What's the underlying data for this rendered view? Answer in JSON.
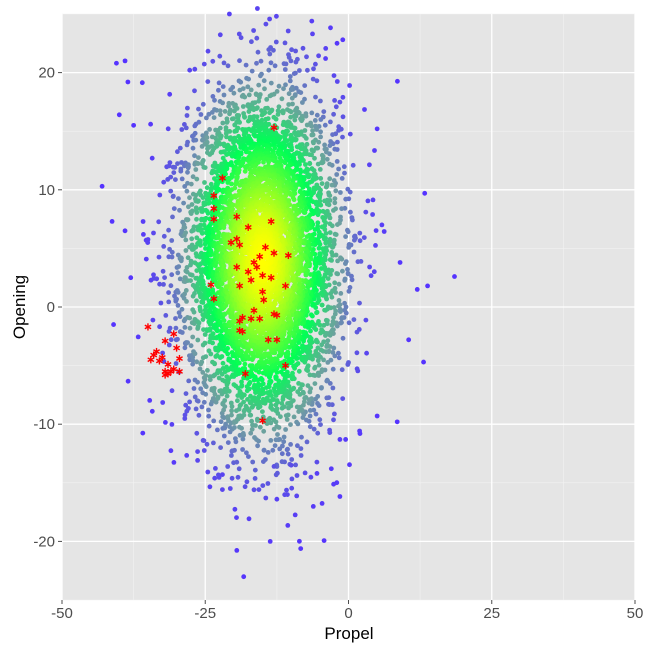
{
  "chart_data": {
    "type": "scatter",
    "title": "",
    "xlabel": "Propel",
    "ylabel": "Opening",
    "xlim": [
      -50,
      50
    ],
    "ylim": [
      -25,
      25
    ],
    "x_ticks": [
      -50,
      -25,
      0,
      25,
      50
    ],
    "x_tick_labels": [
      "-50",
      "-25",
      "0",
      "25",
      "50"
    ],
    "y_ticks": [
      -20,
      -10,
      0,
      10,
      20
    ],
    "y_tick_labels": [
      "-20",
      "-10",
      "0",
      "10",
      "20"
    ],
    "grid": true,
    "legend": "none",
    "colors": {
      "panel_background": "#e5e5e5",
      "grid_major": "#ffffff",
      "density_high": "#ffff00",
      "density_mid": "#00ff55",
      "density_low": "#6f9fa0",
      "outlier": "#5533ff",
      "highlight": "#ff0000"
    },
    "background_cloud": {
      "description_points": "dense cloud of points colored by density",
      "center": [
        -15,
        4
      ],
      "sd": [
        6.5,
        7.0
      ]
    },
    "background_outliers": [
      [
        -43,
        10.3
      ],
      [
        -41,
        -1.5
      ],
      [
        -40,
        16.4
      ],
      [
        -12.5,
        -16.4
      ],
      [
        -39,
        21
      ],
      [
        -40.5,
        20.8
      ],
      [
        18.5,
        2.6
      ],
      [
        13.3,
        9.7
      ],
      [
        13.1,
        -4.7
      ],
      [
        8.5,
        -9.8
      ],
      [
        -22,
        -14.3
      ],
      [
        -10,
        -13.5
      ],
      [
        -5.5,
        -14.2
      ],
      [
        -3,
        -13.8
      ],
      [
        -1.5,
        -11.3
      ],
      [
        -0.5,
        -11.3
      ],
      [
        2,
        -10.8
      ],
      [
        5,
        -9.3
      ],
      [
        -38.5,
        19.2
      ],
      [
        -37.5,
        15.5
      ],
      [
        -39,
        6.5
      ],
      [
        -38,
        2.5
      ],
      [
        13.8,
        1.8
      ],
      [
        12,
        1.5
      ],
      [
        9,
        3.8
      ],
      [
        10.5,
        -2.8
      ],
      [
        -2,
        22.5
      ],
      [
        -1,
        22.8
      ],
      [
        -4,
        21.2
      ],
      [
        5,
        15.2
      ],
      [
        -13,
        -13.6
      ]
    ],
    "highlight_series": {
      "marker": "asterisk",
      "points": [
        [
          -13,
          15.3
        ],
        [
          -22,
          11.0
        ],
        [
          -23.5,
          9.5
        ],
        [
          -23.5,
          8.4
        ],
        [
          -23.5,
          7.5
        ],
        [
          -19.5,
          7.7
        ],
        [
          -13.5,
          7.3
        ],
        [
          -17.5,
          6.8
        ],
        [
          -19.5,
          5.8
        ],
        [
          -20.5,
          5.5
        ],
        [
          -19,
          5.3
        ],
        [
          -14.5,
          5.1
        ],
        [
          -13,
          4.6
        ],
        [
          -10.5,
          4.4
        ],
        [
          -15.5,
          4.3
        ],
        [
          -16.5,
          3.8
        ],
        [
          -16,
          3.4
        ],
        [
          -19.5,
          3.4
        ],
        [
          -17.5,
          3.0
        ],
        [
          -15,
          2.7
        ],
        [
          -13.5,
          2.5
        ],
        [
          -17,
          2.3
        ],
        [
          -24,
          1.9
        ],
        [
          -19,
          1.8
        ],
        [
          -15,
          1.3
        ],
        [
          -11,
          1.8
        ],
        [
          -14.8,
          0.6
        ],
        [
          -23.5,
          0.7
        ],
        [
          -16.5,
          -0.3
        ],
        [
          -18.5,
          -0.9
        ],
        [
          -19,
          -1.2
        ],
        [
          -15.5,
          -1.0
        ],
        [
          -13,
          -0.6
        ],
        [
          -12.5,
          -0.7
        ],
        [
          -17,
          -1.0
        ],
        [
          -19,
          -2.0
        ],
        [
          -18.5,
          -2.1
        ],
        [
          -14,
          -2.8
        ],
        [
          -12.5,
          -2.8
        ],
        [
          -11,
          -5.0
        ],
        [
          -18,
          -5.7
        ],
        [
          -15,
          -9.7
        ],
        [
          -35,
          -1.7
        ],
        [
          -30.5,
          -2.3
        ],
        [
          -32,
          -2.9
        ],
        [
          -30,
          -3.5
        ],
        [
          -33.5,
          -3.8
        ],
        [
          -34,
          -4.1
        ],
        [
          -32.5,
          -4.3
        ],
        [
          -33,
          -4.6
        ],
        [
          -34.5,
          -4.5
        ],
        [
          -29.5,
          -4.4
        ],
        [
          -31.5,
          -4.9
        ],
        [
          -30.5,
          -5.3
        ],
        [
          -31,
          -5.5
        ],
        [
          -32,
          -5.5
        ],
        [
          -29.5,
          -5.5
        ],
        [
          -31.5,
          -5.7
        ],
        [
          -32,
          -5.8
        ]
      ]
    }
  }
}
